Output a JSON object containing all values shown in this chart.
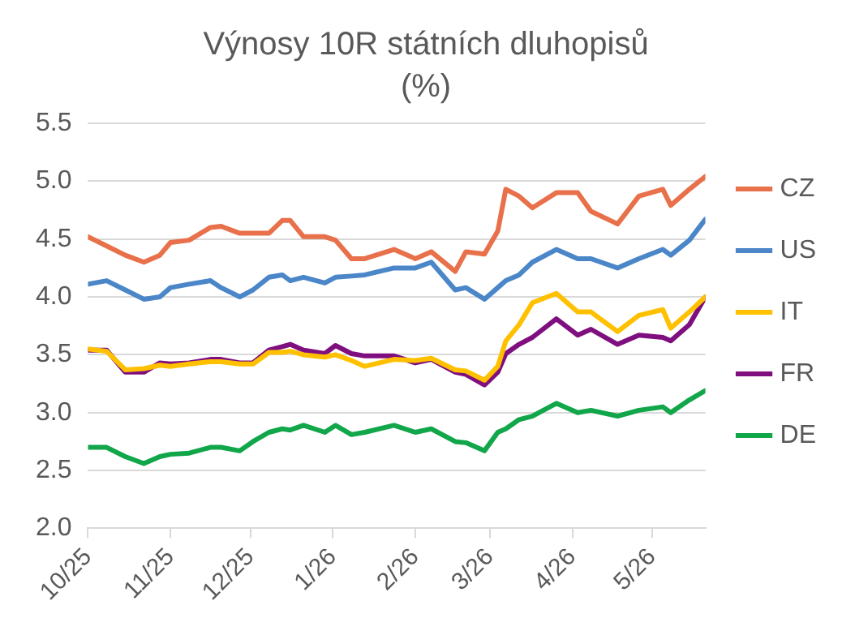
{
  "chart_data": {
    "type": "line",
    "title": "Výnosy 10R státních dluhopisů",
    "subtitle": "(%)",
    "x": [
      "2025-10-01",
      "2025-10-08",
      "2025-10-15",
      "2025-10-22",
      "2025-10-28",
      "2025-11-01",
      "2025-11-08",
      "2025-11-16",
      "2025-11-20",
      "2025-11-27",
      "2025-12-02",
      "2025-12-08",
      "2025-12-13",
      "2025-12-16",
      "2025-12-21",
      "2025-12-29",
      "2026-01-02",
      "2026-01-08",
      "2026-01-13",
      "2026-01-24",
      "2026-02-01",
      "2026-02-07",
      "2026-02-16",
      "2026-02-20",
      "2026-02-27",
      "2026-03-04",
      "2026-03-07",
      "2026-03-12",
      "2026-03-17",
      "2026-03-26",
      "2026-04-03",
      "2026-04-08",
      "2026-04-18",
      "2026-04-26",
      "2026-05-05",
      "2026-05-08",
      "2026-05-15",
      "2026-05-21"
    ],
    "series": [
      {
        "name": "CZ",
        "color": "#e8704a",
        "values": [
          4.52,
          4.44,
          4.36,
          4.3,
          4.36,
          4.47,
          4.49,
          4.6,
          4.61,
          4.55,
          4.55,
          4.55,
          4.66,
          4.66,
          4.52,
          4.52,
          4.49,
          4.33,
          4.33,
          4.41,
          4.33,
          4.39,
          4.22,
          4.39,
          4.37,
          4.57,
          4.93,
          4.87,
          4.77,
          4.9,
          4.9,
          4.74,
          4.63,
          4.87,
          4.93,
          4.79,
          4.93,
          5.04
        ]
      },
      {
        "name": "US",
        "color": "#4a86c8",
        "values": [
          4.11,
          4.14,
          4.06,
          3.98,
          4.0,
          4.08,
          4.11,
          4.14,
          4.08,
          4.0,
          4.06,
          4.17,
          4.19,
          4.14,
          4.17,
          4.12,
          4.17,
          4.18,
          4.19,
          4.25,
          4.25,
          4.3,
          4.06,
          4.08,
          3.98,
          4.08,
          4.14,
          4.19,
          4.3,
          4.41,
          4.33,
          4.33,
          4.25,
          4.33,
          4.41,
          4.36,
          4.49,
          4.67
        ]
      },
      {
        "name": "IT",
        "color": "#ffc000",
        "values": [
          3.55,
          3.53,
          3.37,
          3.38,
          3.41,
          3.4,
          3.42,
          3.44,
          3.44,
          3.42,
          3.42,
          3.52,
          3.52,
          3.53,
          3.5,
          3.48,
          3.5,
          3.45,
          3.4,
          3.46,
          3.45,
          3.47,
          3.37,
          3.36,
          3.28,
          3.4,
          3.62,
          3.76,
          3.95,
          4.03,
          3.87,
          3.87,
          3.7,
          3.84,
          3.89,
          3.73,
          3.87,
          4.0
        ]
      },
      {
        "name": "FR",
        "color": "#7f0f7f",
        "values": [
          3.54,
          3.54,
          3.35,
          3.35,
          3.43,
          3.42,
          3.43,
          3.46,
          3.46,
          3.43,
          3.43,
          3.54,
          3.57,
          3.59,
          3.54,
          3.51,
          3.58,
          3.51,
          3.49,
          3.49,
          3.43,
          3.46,
          3.35,
          3.33,
          3.24,
          3.35,
          3.51,
          3.59,
          3.65,
          3.81,
          3.67,
          3.72,
          3.59,
          3.67,
          3.65,
          3.62,
          3.76,
          4.0
        ]
      },
      {
        "name": "DE",
        "color": "#12a64a",
        "values": [
          2.7,
          2.7,
          2.62,
          2.56,
          2.62,
          2.64,
          2.65,
          2.7,
          2.7,
          2.67,
          2.75,
          2.83,
          2.86,
          2.85,
          2.89,
          2.83,
          2.89,
          2.81,
          2.83,
          2.89,
          2.83,
          2.86,
          2.75,
          2.74,
          2.67,
          2.83,
          2.86,
          2.94,
          2.97,
          3.08,
          3.0,
          3.02,
          2.97,
          3.02,
          3.05,
          3.0,
          3.11,
          3.19
        ]
      }
    ],
    "xlim": [
      "2025-10-01",
      "2026-05-21"
    ],
    "xticks": [
      {
        "value": "2025-10-01",
        "label": "10/25"
      },
      {
        "value": "2025-11-01",
        "label": "11/25"
      },
      {
        "value": "2025-12-01",
        "label": "12/25"
      },
      {
        "value": "2026-01-01",
        "label": "1/26"
      },
      {
        "value": "2026-02-01",
        "label": "2/26"
      },
      {
        "value": "2026-03-01",
        "label": "3/26"
      },
      {
        "value": "2026-04-01",
        "label": "4/26"
      },
      {
        "value": "2026-05-01",
        "label": "5/26"
      }
    ],
    "ylim": [
      2.0,
      5.5
    ],
    "yticks": [
      {
        "value": 2.0,
        "label": "2.0"
      },
      {
        "value": 2.5,
        "label": "2.5"
      },
      {
        "value": 3.0,
        "label": "3.0"
      },
      {
        "value": 3.5,
        "label": "3.5"
      },
      {
        "value": 4.0,
        "label": "4.0"
      },
      {
        "value": 4.5,
        "label": "4.5"
      },
      {
        "value": 5.0,
        "label": "5.0"
      },
      {
        "value": 5.5,
        "label": "5.5"
      }
    ],
    "grid": "y",
    "legend": "right",
    "marker": "none",
    "line_style": "solid"
  }
}
